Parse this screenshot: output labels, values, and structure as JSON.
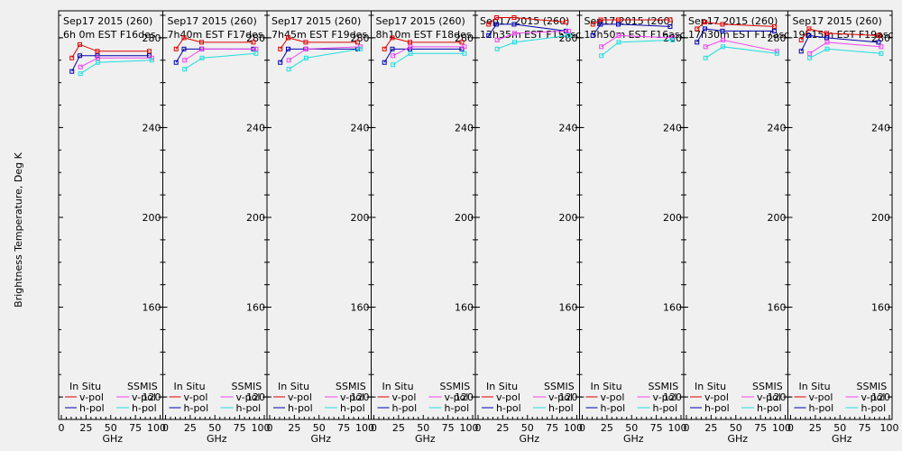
{
  "chart_data": {
    "type": "line",
    "ylabel": "Brightness Temperature, Deg K",
    "xlabel": "GHz",
    "ylim": [
      110,
      292
    ],
    "yticks": [
      120,
      160,
      200,
      240,
      280
    ],
    "xlim": [
      0,
      100
    ],
    "xticks": [
      0,
      25,
      50,
      75,
      100
    ],
    "xtick_labels": [
      "0",
      "25",
      "50",
      "75",
      "100"
    ],
    "legend": {
      "in_situ": "In Situ",
      "ssmis": "SSMIS",
      "v_pol": "v-pol",
      "h_pol": "h-pol"
    },
    "colors": {
      "insitu_v": "#dd0000",
      "insitu_h": "#0000aa",
      "ssmis_v": "#ee44ee",
      "ssmis_h": "#22dddd"
    },
    "panels": [
      {
        "date": "Sep17 2015 (260)",
        "time": "6h 0m  EST F16des",
        "insitu_v": [
          [
            10.7,
            271
          ],
          [
            18.7,
            277
          ],
          [
            36.5,
            274
          ],
          [
            89,
            274
          ]
        ],
        "insitu_h": [
          [
            10.7,
            265
          ],
          [
            18.7,
            272
          ],
          [
            36.5,
            272
          ],
          [
            89,
            272
          ]
        ],
        "ssmis_v": [
          [
            19.35,
            267
          ],
          [
            37,
            271
          ],
          [
            91.65,
            271
          ]
        ],
        "ssmis_h": [
          [
            19.35,
            264
          ],
          [
            37,
            269
          ],
          [
            91.65,
            270
          ]
        ]
      },
      {
        "date": "Sep17 2015 (260)",
        "time": "7h40m  EST F17des",
        "insitu_v": [
          [
            10.7,
            275
          ],
          [
            18.7,
            280
          ],
          [
            36.5,
            278
          ],
          [
            89,
            278
          ]
        ],
        "insitu_h": [
          [
            10.7,
            269
          ],
          [
            18.7,
            275
          ],
          [
            36.5,
            275
          ],
          [
            89,
            275
          ]
        ],
        "ssmis_v": [
          [
            19.35,
            270
          ],
          [
            37,
            275
          ],
          [
            91.65,
            275
          ]
        ],
        "ssmis_h": [
          [
            19.35,
            266
          ],
          [
            37,
            271
          ],
          [
            91.65,
            273
          ]
        ]
      },
      {
        "date": "Sep17 2015 (260)",
        "time": "7h45m  EST F19des",
        "insitu_v": [
          [
            10.7,
            275
          ],
          [
            18.7,
            280
          ],
          [
            36.5,
            278
          ],
          [
            89,
            278
          ]
        ],
        "insitu_h": [
          [
            10.7,
            269
          ],
          [
            18.7,
            275
          ],
          [
            36.5,
            275
          ],
          [
            89,
            275
          ]
        ],
        "ssmis_v": [
          [
            19.35,
            270
          ],
          [
            37,
            275
          ],
          [
            91.65,
            276
          ]
        ],
        "ssmis_h": [
          [
            19.35,
            266
          ],
          [
            37,
            271
          ],
          [
            91.65,
            275
          ]
        ]
      },
      {
        "date": "Sep17 2015 (260)",
        "time": "8h10m  EST F18des",
        "insitu_v": [
          [
            10.7,
            275
          ],
          [
            18.7,
            280
          ],
          [
            36.5,
            278
          ],
          [
            89,
            278
          ]
        ],
        "insitu_h": [
          [
            10.7,
            269
          ],
          [
            18.7,
            275
          ],
          [
            36.5,
            275
          ],
          [
            89,
            275
          ]
        ],
        "ssmis_v": [
          [
            19.35,
            272
          ],
          [
            37,
            276
          ],
          [
            91.65,
            276
          ]
        ],
        "ssmis_h": [
          [
            19.35,
            268
          ],
          [
            37,
            273
          ],
          [
            91.65,
            273
          ]
        ]
      },
      {
        "date": "Sep17 2015 (260)",
        "time": "12h35m  EST F15asc",
        "insitu_v": [
          [
            10.7,
            286
          ],
          [
            18.7,
            289
          ],
          [
            36.5,
            289
          ],
          [
            89,
            287
          ]
        ],
        "insitu_h": [
          [
            10.7,
            281
          ],
          [
            18.7,
            286
          ],
          [
            36.5,
            286
          ],
          [
            89,
            283
          ]
        ],
        "ssmis_v": [
          [
            19.35,
            279
          ],
          [
            37,
            282
          ],
          [
            91.65,
            283
          ]
        ],
        "ssmis_h": [
          [
            19.35,
            275
          ],
          [
            37,
            278
          ],
          [
            91.65,
            281
          ]
        ]
      },
      {
        "date": "Sep17 2015 (260)",
        "time": "15h50m  EST F16asc",
        "insitu_v": [
          [
            10.7,
            286
          ],
          [
            18.7,
            288
          ],
          [
            36.5,
            288
          ],
          [
            89,
            288
          ]
        ],
        "insitu_h": [
          [
            10.7,
            281
          ],
          [
            18.7,
            286
          ],
          [
            36.5,
            286
          ],
          [
            89,
            285
          ]
        ],
        "ssmis_v": [
          [
            19.35,
            276
          ],
          [
            37,
            281
          ],
          [
            91.65,
            280
          ]
        ],
        "ssmis_h": [
          [
            19.35,
            272
          ],
          [
            37,
            278
          ],
          [
            91.65,
            279
          ]
        ]
      },
      {
        "date": "Sep17 2015 (260)",
        "time": "17h30m  EST F17asc",
        "insitu_v": [
          [
            10.7,
            284
          ],
          [
            18.7,
            287
          ],
          [
            36.5,
            286
          ],
          [
            89,
            285
          ]
        ],
        "insitu_h": [
          [
            10.7,
            278
          ],
          [
            18.7,
            284
          ],
          [
            36.5,
            283
          ],
          [
            89,
            283
          ]
        ],
        "ssmis_v": [
          [
            19.35,
            276
          ],
          [
            37,
            279
          ],
          [
            91.65,
            274
          ]
        ],
        "ssmis_h": [
          [
            19.35,
            271
          ],
          [
            37,
            276
          ],
          [
            91.65,
            273
          ]
        ]
      },
      {
        "date": "Sep17 2015 (260)",
        "time": "19h15m  EST F19asc",
        "insitu_v": [
          [
            10.7,
            279
          ],
          [
            18.7,
            284
          ],
          [
            36.5,
            282
          ],
          [
            89,
            281
          ]
        ],
        "insitu_h": [
          [
            10.7,
            274
          ],
          [
            18.7,
            281
          ],
          [
            36.5,
            280
          ],
          [
            89,
            278
          ]
        ],
        "ssmis_v": [
          [
            19.35,
            273
          ],
          [
            37,
            278
          ],
          [
            91.65,
            276
          ]
        ],
        "ssmis_h": [
          [
            19.35,
            271
          ],
          [
            37,
            275
          ],
          [
            91.65,
            273
          ]
        ]
      }
    ]
  }
}
